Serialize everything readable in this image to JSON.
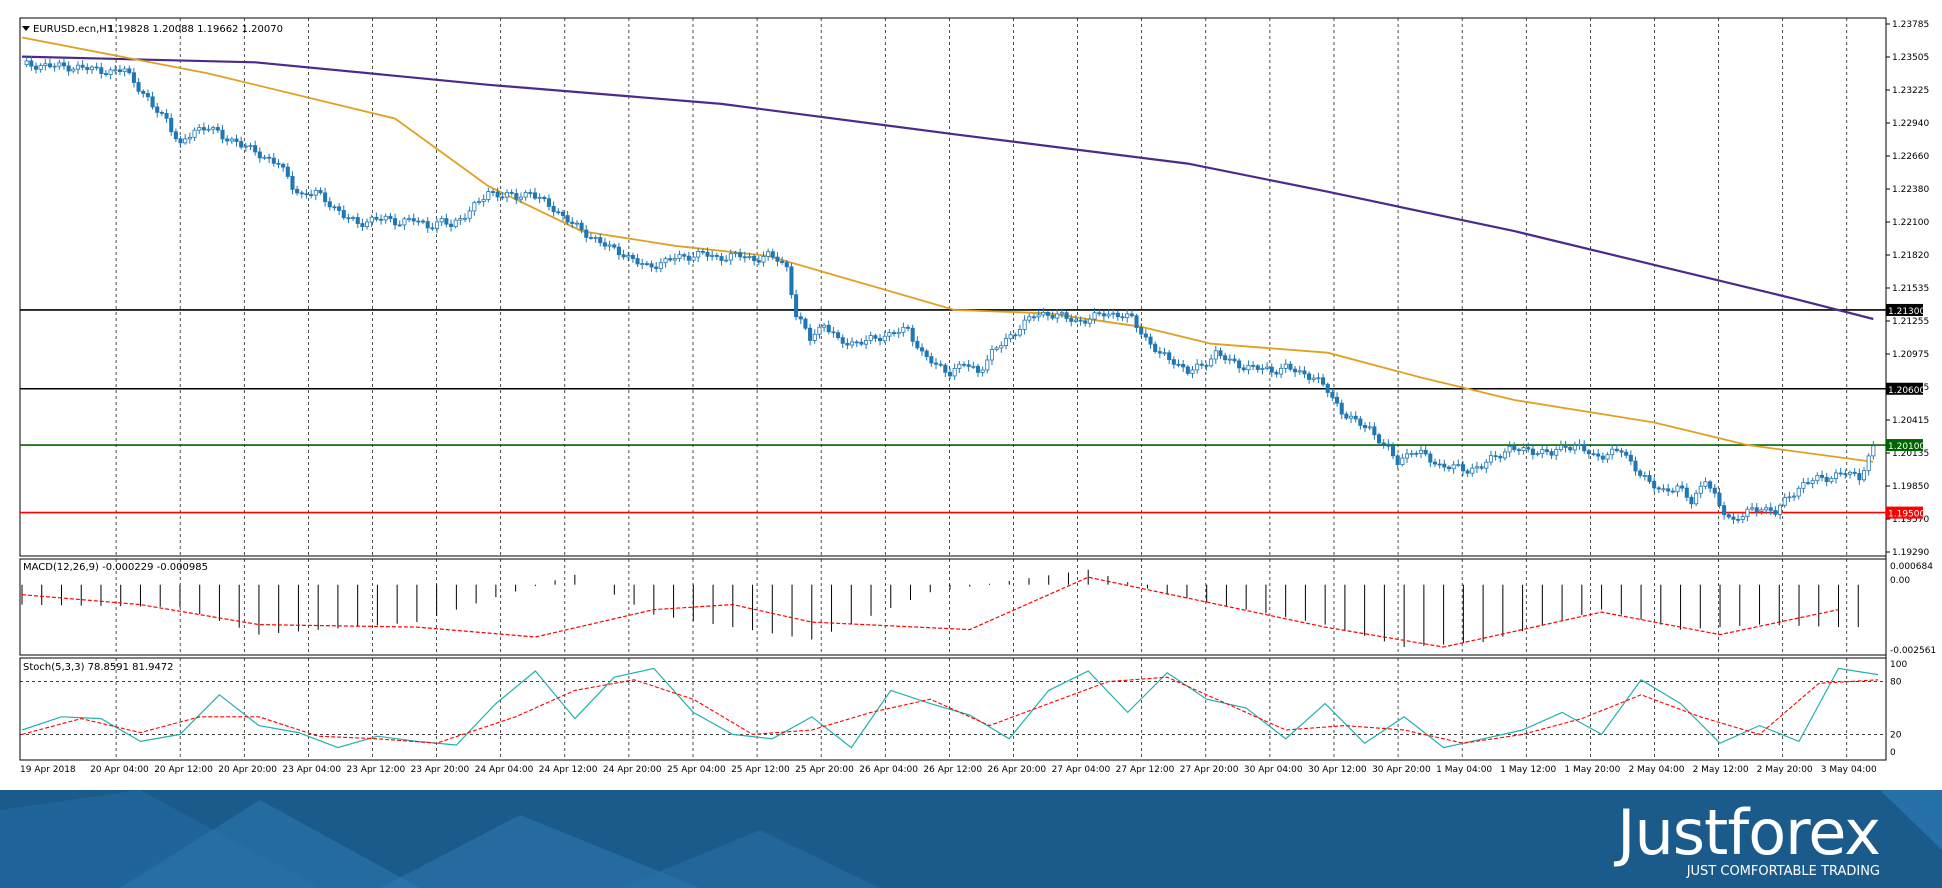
{
  "window": {
    "title": "EURUSD.ecn,H1",
    "ohlc": "1.19828 1.20088 1.19662 1.20070"
  },
  "chart_data": {
    "type": "candlestick",
    "symbol": "EURUSD.ecn",
    "timeframe": "H1",
    "ylim": [
      1.1915,
      1.2384
    ],
    "price_ticks": [
      "1.23785",
      "1.23505",
      "1.23225",
      "1.22940",
      "1.22660",
      "1.22380",
      "1.22100",
      "1.21820",
      "1.21535",
      "1.21255",
      "1.20975",
      "1.20695",
      "1.20415",
      "1.20135",
      "1.19850",
      "1.19570",
      "1.19290"
    ],
    "time_labels": [
      "19 Apr 2018",
      "20 Apr 04:00",
      "20 Apr 12:00",
      "20 Apr 20:00",
      "23 Apr 04:00",
      "23 Apr 12:00",
      "23 Apr 20:00",
      "24 Apr 04:00",
      "24 Apr 12:00",
      "24 Apr 20:00",
      "25 Apr 04:00",
      "25 Apr 12:00",
      "25 Apr 20:00",
      "26 Apr 04:00",
      "26 Apr 12:00",
      "26 Apr 20:00",
      "27 Apr 04:00",
      "27 Apr 12:00",
      "27 Apr 20:00",
      "30 Apr 04:00",
      "30 Apr 12:00",
      "30 Apr 20:00",
      "1 May 04:00",
      "1 May 12:00",
      "1 May 20:00",
      "2 May 04:00",
      "2 May 12:00",
      "2 May 20:00",
      "3 May 04:00"
    ],
    "close_path": [
      [
        0,
        1.2348
      ],
      [
        5,
        1.2347
      ],
      [
        10,
        1.2346
      ],
      [
        15,
        1.2344
      ],
      [
        20,
        1.2341
      ],
      [
        22,
        1.2344
      ],
      [
        25,
        1.2328
      ],
      [
        28,
        1.231
      ],
      [
        31,
        1.23
      ],
      [
        34,
        1.2275
      ],
      [
        37,
        1.229
      ],
      [
        40,
        1.2293
      ],
      [
        43,
        1.2283
      ],
      [
        46,
        1.228
      ],
      [
        49,
        1.2272
      ],
      [
        52,
        1.2266
      ],
      [
        55,
        1.226
      ],
      [
        58,
        1.224
      ],
      [
        60,
        1.2232
      ],
      [
        63,
        1.2234
      ],
      [
        66,
        1.2225
      ],
      [
        69,
        1.2213
      ],
      [
        72,
        1.2207
      ],
      [
        75,
        1.221
      ],
      [
        78,
        1.2211
      ],
      [
        81,
        1.2208
      ],
      [
        84,
        1.221
      ],
      [
        87,
        1.2205
      ],
      [
        90,
        1.2208
      ],
      [
        92,
        1.2205
      ],
      [
        95,
        1.2215
      ],
      [
        98,
        1.2225
      ],
      [
        100,
        1.2235
      ],
      [
        103,
        1.2232
      ],
      [
        106,
        1.223
      ],
      [
        109,
        1.2235
      ],
      [
        112,
        1.2225
      ],
      [
        114,
        1.222
      ],
      [
        117,
        1.221
      ],
      [
        120,
        1.22
      ],
      [
        123,
        1.2193
      ],
      [
        126,
        1.2185
      ],
      [
        129,
        1.218
      ],
      [
        132,
        1.2172
      ],
      [
        134,
        1.2168
      ],
      [
        137,
        1.2172
      ],
      [
        140,
        1.2176
      ],
      [
        143,
        1.2178
      ],
      [
        146,
        1.218
      ],
      [
        149,
        1.2176
      ],
      [
        152,
        1.2178
      ],
      [
        154,
        1.2178
      ],
      [
        157,
        1.2175
      ],
      [
        160,
        1.2178
      ],
      [
        162,
        1.2175
      ],
      [
        164,
        1.2168
      ],
      [
        166,
        1.2125
      ],
      [
        169,
        1.2105
      ],
      [
        172,
        1.2118
      ],
      [
        175,
        1.2102
      ],
      [
        178,
        1.2101
      ],
      [
        181,
        1.2102
      ],
      [
        184,
        1.2106
      ],
      [
        187,
        1.211
      ],
      [
        190,
        1.2112
      ],
      [
        193,
        1.2092
      ],
      [
        196,
        1.208
      ],
      [
        199,
        1.2075
      ],
      [
        202,
        1.2082
      ],
      [
        205,
        1.2075
      ],
      [
        208,
        1.2092
      ],
      [
        211,
        1.2103
      ],
      [
        214,
        1.2115
      ],
      [
        217,
        1.2125
      ],
      [
        220,
        1.2127
      ],
      [
        223,
        1.2124
      ],
      [
        226,
        1.212
      ],
      [
        229,
        1.2122
      ],
      [
        232,
        1.2127
      ],
      [
        235,
        1.2126
      ],
      [
        238,
        1.2122
      ],
      [
        241,
        1.2105
      ],
      [
        244,
        1.209
      ],
      [
        247,
        1.2085
      ],
      [
        250,
        1.2075
      ],
      [
        253,
        1.208
      ],
      [
        256,
        1.2092
      ],
      [
        259,
        1.2084
      ],
      [
        262,
        1.208
      ],
      [
        265,
        1.2078
      ],
      [
        268,
        1.2076
      ],
      [
        271,
        1.2079
      ],
      [
        274,
        1.2074
      ],
      [
        277,
        1.2071
      ],
      [
        280,
        1.2058
      ],
      [
        283,
        1.204
      ],
      [
        286,
        1.203
      ],
      [
        289,
        1.2025
      ],
      [
        292,
        1.201
      ],
      [
        295,
        1.1995
      ],
      [
        298,
        1.2005
      ],
      [
        301,
        1.2
      ],
      [
        304,
        1.1992
      ],
      [
        307,
        1.199
      ],
      [
        310,
        1.1988
      ],
      [
        313,
        1.1991
      ],
      [
        316,
        1.2
      ],
      [
        319,
        1.2007
      ],
      [
        322,
        1.2005
      ],
      [
        325,
        1.2005
      ],
      [
        328,
        1.2002
      ],
      [
        331,
        1.201
      ],
      [
        334,
        1.2008
      ],
      [
        337,
        1.2
      ],
      [
        340,
        1.2002
      ],
      [
        343,
        1.2005
      ],
      [
        346,
        1.199
      ],
      [
        349,
        1.1975
      ],
      [
        352,
        1.197
      ],
      [
        355,
        1.1972
      ],
      [
        358,
        1.196
      ],
      [
        361,
        1.198
      ],
      [
        364,
        1.1955
      ],
      [
        367,
        1.1943
      ],
      [
        370,
        1.195
      ],
      [
        373,
        1.1955
      ],
      [
        376,
        1.195
      ],
      [
        379,
        1.1965
      ],
      [
        382,
        1.1975
      ],
      [
        385,
        1.198
      ],
      [
        388,
        1.1982
      ],
      [
        391,
        1.1985
      ],
      [
        394,
        1.1982
      ],
      [
        397,
        1.2007
      ]
    ],
    "ma_fast": [
      [
        0,
        1.2372
      ],
      [
        40,
        1.234
      ],
      [
        80,
        1.23
      ],
      [
        100,
        1.224
      ],
      [
        120,
        1.22
      ],
      [
        140,
        1.2187
      ],
      [
        160,
        1.2178
      ],
      [
        175,
        1.216
      ],
      [
        200,
        1.213
      ],
      [
        220,
        1.2127
      ],
      [
        240,
        1.2115
      ],
      [
        255,
        1.21
      ],
      [
        280,
        1.2092
      ],
      [
        300,
        1.207
      ],
      [
        320,
        1.205
      ],
      [
        350,
        1.203
      ],
      [
        370,
        1.201
      ],
      [
        397,
        1.1995
      ]
    ],
    "ma_slow": [
      [
        0,
        1.2355
      ],
      [
        50,
        1.235
      ],
      [
        100,
        1.233
      ],
      [
        150,
        1.2313
      ],
      [
        200,
        1.2286
      ],
      [
        250,
        1.226
      ],
      [
        280,
        1.2235
      ],
      [
        320,
        1.22
      ],
      [
        350,
        1.217
      ],
      [
        380,
        1.214
      ],
      [
        397,
        1.2122
      ]
    ],
    "levels": [
      {
        "price": 1.213,
        "label": "1.21300",
        "color": "#000000"
      },
      {
        "price": 1.206,
        "label": "1.20600",
        "color": "#000000"
      },
      {
        "price": 1.201,
        "label": "1.20100",
        "color": "#006400"
      },
      {
        "price": 1.195,
        "label": "1.19500",
        "color": "#ff0000"
      }
    ]
  },
  "macd": {
    "title": "MACD(12,26,9) -0.000229 -0.000985",
    "ticks": [
      "0.000684",
      "0.00",
      "-0.002561"
    ],
    "ylim": [
      -0.0027,
      0.00075
    ],
    "histogram": [
      [
        0,
        -0.0008
      ],
      [
        40,
        -0.0009
      ],
      [
        60,
        -0.002
      ],
      [
        100,
        -0.0015
      ],
      [
        120,
        -0.0005
      ],
      [
        140,
        0.0004
      ],
      [
        160,
        -0.0012
      ],
      [
        200,
        -0.0022
      ],
      [
        230,
        -0.0003
      ],
      [
        270,
        0.0006
      ],
      [
        290,
        -0.0004
      ],
      [
        310,
        -0.001
      ],
      [
        330,
        -0.0016
      ],
      [
        350,
        -0.0025
      ],
      [
        370,
        -0.0023
      ],
      [
        400,
        -0.001
      ],
      [
        420,
        -0.0018
      ],
      [
        440,
        -0.0016
      ],
      [
        460,
        -0.0017
      ]
    ],
    "signal": [
      [
        0,
        -0.0004
      ],
      [
        30,
        -0.0008
      ],
      [
        60,
        -0.0016
      ],
      [
        100,
        -0.0017
      ],
      [
        130,
        -0.0021
      ],
      [
        160,
        -0.001
      ],
      [
        180,
        -0.0008
      ],
      [
        200,
        -0.0015
      ],
      [
        240,
        -0.0018
      ],
      [
        270,
        0.0003
      ],
      [
        300,
        -0.0007
      ],
      [
        330,
        -0.0017
      ],
      [
        360,
        -0.0025
      ],
      [
        400,
        -0.0011
      ],
      [
        430,
        -0.002
      ],
      [
        460,
        -0.001
      ]
    ]
  },
  "stoch": {
    "title": "Stoch(5,3,3) 78.8591 81.9472",
    "ticks": [
      "100",
      "80",
      "20",
      "0"
    ],
    "main": [
      [
        0,
        25
      ],
      [
        10,
        40
      ],
      [
        20,
        38
      ],
      [
        30,
        12
      ],
      [
        40,
        20
      ],
      [
        50,
        65
      ],
      [
        60,
        30
      ],
      [
        70,
        22
      ],
      [
        80,
        5
      ],
      [
        90,
        18
      ],
      [
        100,
        12
      ],
      [
        110,
        8
      ],
      [
        120,
        55
      ],
      [
        130,
        92
      ],
      [
        140,
        38
      ],
      [
        150,
        85
      ],
      [
        160,
        95
      ],
      [
        170,
        45
      ],
      [
        180,
        20
      ],
      [
        190,
        15
      ],
      [
        200,
        40
      ],
      [
        210,
        5
      ],
      [
        220,
        70
      ],
      [
        230,
        55
      ],
      [
        240,
        42
      ],
      [
        250,
        15
      ],
      [
        260,
        70
      ],
      [
        270,
        92
      ],
      [
        280,
        45
      ],
      [
        290,
        90
      ],
      [
        300,
        60
      ],
      [
        310,
        50
      ],
      [
        320,
        15
      ],
      [
        330,
        55
      ],
      [
        340,
        10
      ],
      [
        350,
        40
      ],
      [
        360,
        5
      ],
      [
        370,
        15
      ],
      [
        380,
        25
      ],
      [
        390,
        45
      ],
      [
        400,
        20
      ],
      [
        410,
        82
      ],
      [
        420,
        55
      ],
      [
        430,
        10
      ],
      [
        440,
        30
      ],
      [
        450,
        12
      ],
      [
        460,
        95
      ],
      [
        470,
        88
      ]
    ],
    "signal": [
      [
        0,
        20
      ],
      [
        15,
        38
      ],
      [
        30,
        22
      ],
      [
        45,
        40
      ],
      [
        60,
        40
      ],
      [
        75,
        18
      ],
      [
        90,
        15
      ],
      [
        105,
        10
      ],
      [
        125,
        40
      ],
      [
        140,
        70
      ],
      [
        155,
        82
      ],
      [
        170,
        60
      ],
      [
        185,
        20
      ],
      [
        200,
        25
      ],
      [
        215,
        45
      ],
      [
        230,
        60
      ],
      [
        245,
        30
      ],
      [
        260,
        55
      ],
      [
        275,
        80
      ],
      [
        290,
        85
      ],
      [
        305,
        55
      ],
      [
        320,
        25
      ],
      [
        335,
        30
      ],
      [
        350,
        25
      ],
      [
        365,
        10
      ],
      [
        380,
        20
      ],
      [
        395,
        38
      ],
      [
        410,
        65
      ],
      [
        425,
        40
      ],
      [
        440,
        20
      ],
      [
        455,
        78
      ],
      [
        470,
        82
      ]
    ]
  },
  "brand": {
    "name": "Justforex",
    "tagline": "JUST COMFORTABLE TRADING"
  },
  "colors": {
    "bull_body": "#ffffff",
    "bear_body": "#1f77b4",
    "wick": "#1f77b4",
    "ma_fast": "#e0a020",
    "ma_slow": "#4b2a8c",
    "macd_hist": "#000000",
    "macd_signal": "#ff0000",
    "stoch_main": "#20b2aa",
    "stoch_signal": "#ff0000",
    "brand_bg": "#1a5b8c"
  }
}
